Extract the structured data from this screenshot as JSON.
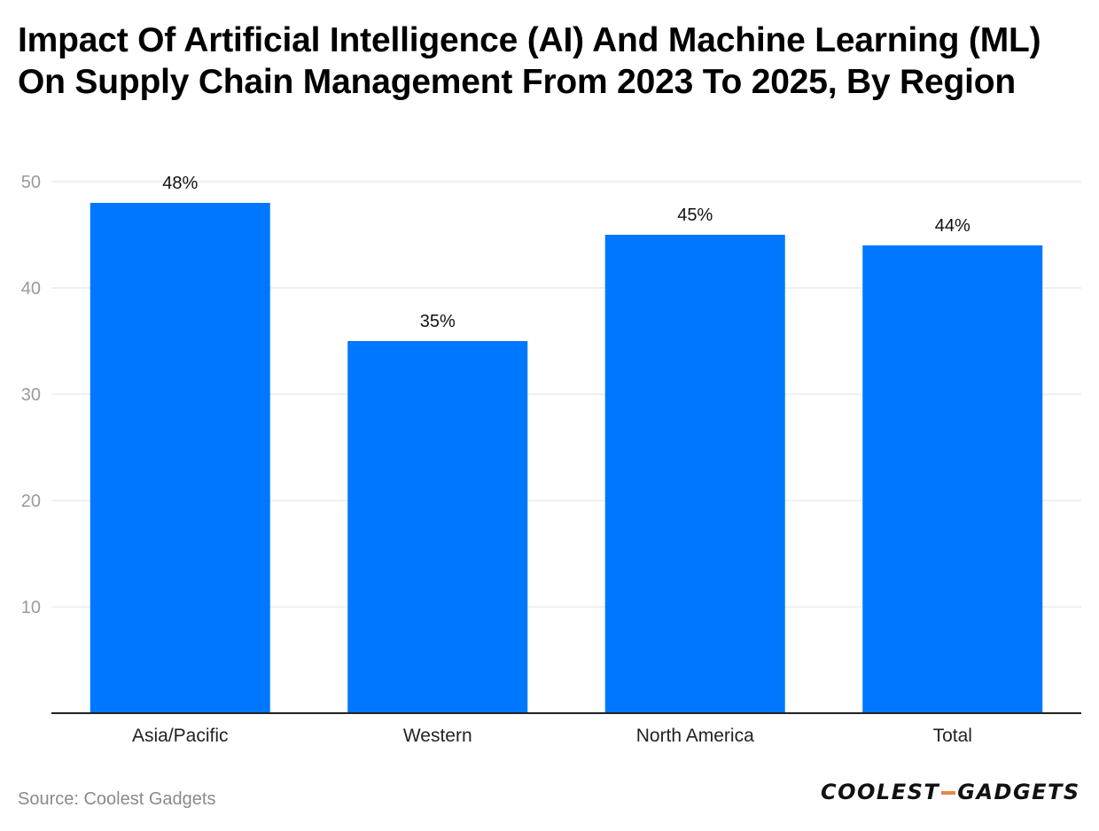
{
  "chart_data": {
    "type": "bar",
    "title": "Impact Of Artificial Intelligence (AI) And Machine Learning (ML) On Supply Chain Management From 2023 To 2025, By Region",
    "categories": [
      "Asia/Pacific",
      "Western",
      "North America",
      "Total"
    ],
    "values": [
      48,
      35,
      45,
      44
    ],
    "data_labels": [
      "48%",
      "35%",
      "45%",
      "44%"
    ],
    "yticks": [
      10,
      20,
      30,
      40,
      50
    ],
    "ylim": [
      0,
      50
    ],
    "xlabel": "",
    "ylabel": "",
    "grid": true,
    "bar_color": "#0077ff"
  },
  "footer": {
    "source": "Source: Coolest Gadgets",
    "logo_left": "COOLEST",
    "logo_right": "GADGETS"
  }
}
